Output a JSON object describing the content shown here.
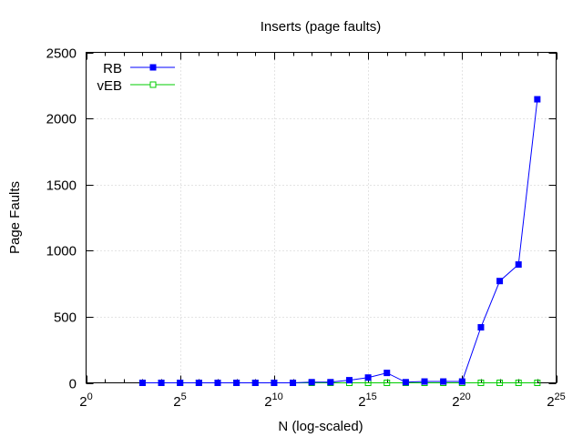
{
  "chart_data": {
    "type": "line",
    "title": "Inserts (page faults)",
    "xlabel": "N (log-scaled)",
    "ylabel": "Page Faults",
    "x_scale": "log2",
    "xlim": [
      1,
      33554432
    ],
    "ylim": [
      0,
      2500
    ],
    "x_ticks": [
      {
        "base": "2",
        "exp": "0",
        "value": 1
      },
      {
        "base": "2",
        "exp": "5",
        "value": 32
      },
      {
        "base": "2",
        "exp": "10",
        "value": 1024
      },
      {
        "base": "2",
        "exp": "15",
        "value": 32768
      },
      {
        "base": "2",
        "exp": "20",
        "value": 1048576
      },
      {
        "base": "2",
        "exp": "25",
        "value": 33554432
      }
    ],
    "y_ticks": [
      "0",
      "500",
      "1000",
      "1500",
      "2000",
      "2500"
    ],
    "grid": true,
    "legend_position": "top-left",
    "x": [
      8,
      16,
      32,
      64,
      128,
      256,
      512,
      1024,
      2048,
      4096,
      8192,
      16384,
      32768,
      65536,
      131072,
      262144,
      524288,
      1048576,
      2097152,
      4194304,
      8388608,
      16777216
    ],
    "series": [
      {
        "name": "RB",
        "color": "#0000ff",
        "marker": "filled-square",
        "values": [
          0,
          0,
          0,
          0,
          0,
          0,
          0,
          0,
          0,
          5,
          5,
          20,
          40,
          75,
          5,
          10,
          10,
          10,
          420,
          770,
          895,
          2145
        ]
      },
      {
        "name": "vEB",
        "color": "#00cc00",
        "marker": "open-square",
        "values": [
          0,
          0,
          0,
          0,
          0,
          0,
          0,
          0,
          0,
          0,
          0,
          0,
          0,
          0,
          0,
          0,
          0,
          0,
          0,
          0,
          0,
          0
        ]
      }
    ]
  }
}
